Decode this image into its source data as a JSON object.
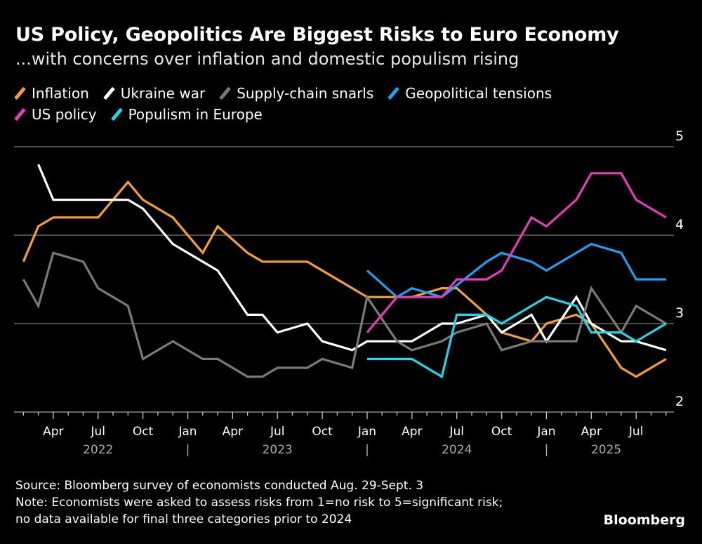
{
  "title": "US Policy, Geopolitics Are Biggest Risks to Euro Economy",
  "subtitle": "...with concerns over inflation and domestic populism rising",
  "footer": {
    "source": "Source: Bloomberg survey of economists conducted Aug. 29-Sept. 3",
    "note1": "Note: Economists were asked to assess risks from 1=no risk to 5=significant risk;",
    "note2": "no data available for final three categories prior to 2024",
    "logo": "Bloomberg"
  },
  "chart_data": {
    "type": "line",
    "title": "US Policy, Geopolitics Are Biggest Risks to Euro Economy",
    "subtitle": "...with concerns over inflation and domestic populism rising",
    "x_range": [
      "2022-02",
      "2025-09"
    ],
    "ylim": [
      2,
      5
    ],
    "y_ticks": [
      5,
      4,
      3,
      2
    ],
    "y_axis_side": "right",
    "grid": true,
    "legend_placement": "top-left",
    "x_ticks": [
      {
        "date": "2022-04",
        "label": "Apr"
      },
      {
        "date": "2022-07",
        "label": "Jul"
      },
      {
        "date": "2022-10",
        "label": "Oct"
      },
      {
        "date": "2023-01",
        "label": "Jan"
      },
      {
        "date": "2023-04",
        "label": "Apr"
      },
      {
        "date": "2023-07",
        "label": "Jul"
      },
      {
        "date": "2023-10",
        "label": "Oct"
      },
      {
        "date": "2024-01",
        "label": "Jan"
      },
      {
        "date": "2024-04",
        "label": "Apr"
      },
      {
        "date": "2024-07",
        "label": "Jul"
      },
      {
        "date": "2024-10",
        "label": "Oct"
      },
      {
        "date": "2025-01",
        "label": "Jan"
      },
      {
        "date": "2025-04",
        "label": "Apr"
      },
      {
        "date": "2025-07",
        "label": "Jul"
      }
    ],
    "year_labels": [
      {
        "label": "2022",
        "center": "2022-07"
      },
      {
        "label": "2023",
        "center": "2023-07"
      },
      {
        "label": "2024",
        "center": "2024-07"
      },
      {
        "label": "2025",
        "center": "2025-05"
      }
    ],
    "year_separator": "|",
    "series": [
      {
        "name": "Inflation",
        "color": "#f5a035",
        "points": [
          [
            "2022-02",
            3.7
          ],
          [
            "2022-03",
            4.1
          ],
          [
            "2022-04",
            4.2
          ],
          [
            "2022-07",
            4.2
          ],
          [
            "2022-09",
            4.6
          ],
          [
            "2022-10",
            4.4
          ],
          [
            "2022-12",
            4.2
          ],
          [
            "2023-02",
            3.8
          ],
          [
            "2023-03",
            4.1
          ],
          [
            "2023-05",
            3.8
          ],
          [
            "2023-06",
            3.7
          ],
          [
            "2023-09",
            3.7
          ],
          [
            "2024-01",
            3.3
          ],
          [
            "2024-04",
            3.3
          ],
          [
            "2024-06",
            3.4
          ],
          [
            "2024-07",
            3.4
          ],
          [
            "2024-09",
            3.1
          ],
          [
            "2024-10",
            2.9
          ],
          [
            "2024-12",
            2.8
          ],
          [
            "2025-01",
            3.0
          ],
          [
            "2025-03",
            3.1
          ],
          [
            "2025-04",
            3.0
          ],
          [
            "2025-06",
            2.5
          ],
          [
            "2025-07",
            2.4
          ],
          [
            "2025-09",
            2.6
          ]
        ]
      },
      {
        "name": "Ukraine war",
        "color": "#ffffff",
        "points": [
          [
            "2022-03",
            4.8
          ],
          [
            "2022-04",
            4.4
          ],
          [
            "2022-09",
            4.4
          ],
          [
            "2022-10",
            4.3
          ],
          [
            "2022-12",
            3.9
          ],
          [
            "2023-03",
            3.6
          ],
          [
            "2023-05",
            3.1
          ],
          [
            "2023-06",
            3.1
          ],
          [
            "2023-07",
            2.9
          ],
          [
            "2023-09",
            3.0
          ],
          [
            "2023-10",
            2.8
          ],
          [
            "2023-12",
            2.7
          ],
          [
            "2024-01",
            2.8
          ],
          [
            "2024-04",
            2.8
          ],
          [
            "2024-06",
            3.0
          ],
          [
            "2024-07",
            3.0
          ],
          [
            "2024-09",
            3.1
          ],
          [
            "2024-10",
            2.9
          ],
          [
            "2024-12",
            3.1
          ],
          [
            "2025-01",
            2.8
          ],
          [
            "2025-03",
            3.3
          ],
          [
            "2025-04",
            3.0
          ],
          [
            "2025-06",
            2.8
          ],
          [
            "2025-07",
            2.8
          ],
          [
            "2025-09",
            2.7
          ]
        ]
      },
      {
        "name": "Supply-chain snarls",
        "color": "#7a7a7a",
        "points": [
          [
            "2022-02",
            3.5
          ],
          [
            "2022-03",
            3.2
          ],
          [
            "2022-04",
            3.8
          ],
          [
            "2022-06",
            3.7
          ],
          [
            "2022-07",
            3.4
          ],
          [
            "2022-09",
            3.2
          ],
          [
            "2022-10",
            2.6
          ],
          [
            "2022-12",
            2.8
          ],
          [
            "2023-02",
            2.6
          ],
          [
            "2023-03",
            2.6
          ],
          [
            "2023-05",
            2.4
          ],
          [
            "2023-06",
            2.4
          ],
          [
            "2023-07",
            2.5
          ],
          [
            "2023-09",
            2.5
          ],
          [
            "2023-10",
            2.6
          ],
          [
            "2023-12",
            2.5
          ],
          [
            "2024-01",
            3.3
          ],
          [
            "2024-03",
            2.8
          ],
          [
            "2024-04",
            2.7
          ],
          [
            "2024-06",
            2.8
          ],
          [
            "2024-07",
            2.9
          ],
          [
            "2024-09",
            3.0
          ],
          [
            "2024-10",
            2.7
          ],
          [
            "2024-12",
            2.8
          ],
          [
            "2025-03",
            2.8
          ],
          [
            "2025-04",
            3.4
          ],
          [
            "2025-06",
            2.9
          ],
          [
            "2025-07",
            3.2
          ],
          [
            "2025-09",
            3.0
          ]
        ]
      },
      {
        "name": "Geopolitical tensions",
        "color": "#1da1f2",
        "points": [
          [
            "2024-01",
            3.6
          ],
          [
            "2024-03",
            3.3
          ],
          [
            "2024-04",
            3.4
          ],
          [
            "2024-06",
            3.3
          ],
          [
            "2024-09",
            3.7
          ],
          [
            "2024-10",
            3.8
          ],
          [
            "2024-12",
            3.7
          ],
          [
            "2025-01",
            3.6
          ],
          [
            "2025-04",
            3.9
          ],
          [
            "2025-06",
            3.8
          ],
          [
            "2025-07",
            3.5
          ],
          [
            "2025-09",
            3.5
          ]
        ]
      },
      {
        "name": "US policy",
        "color": "#e63cbc",
        "points": [
          [
            "2024-01",
            2.9
          ],
          [
            "2024-03",
            3.3
          ],
          [
            "2024-06",
            3.3
          ],
          [
            "2024-07",
            3.5
          ],
          [
            "2024-09",
            3.5
          ],
          [
            "2024-10",
            3.6
          ],
          [
            "2024-12",
            4.2
          ],
          [
            "2025-01",
            4.1
          ],
          [
            "2025-03",
            4.4
          ],
          [
            "2025-04",
            4.7
          ],
          [
            "2025-06",
            4.7
          ],
          [
            "2025-07",
            4.4
          ],
          [
            "2025-09",
            4.2
          ]
        ]
      },
      {
        "name": "Populism in Europe",
        "color": "#1fd8ec",
        "points": [
          [
            "2024-01",
            2.6
          ],
          [
            "2024-04",
            2.6
          ],
          [
            "2024-06",
            2.4
          ],
          [
            "2024-07",
            3.1
          ],
          [
            "2024-09",
            3.1
          ],
          [
            "2024-10",
            3.0
          ],
          [
            "2025-01",
            3.3
          ],
          [
            "2025-03",
            3.2
          ],
          [
            "2025-04",
            2.9
          ],
          [
            "2025-06",
            2.9
          ],
          [
            "2025-07",
            2.8
          ],
          [
            "2025-09",
            3.0
          ]
        ]
      }
    ]
  }
}
